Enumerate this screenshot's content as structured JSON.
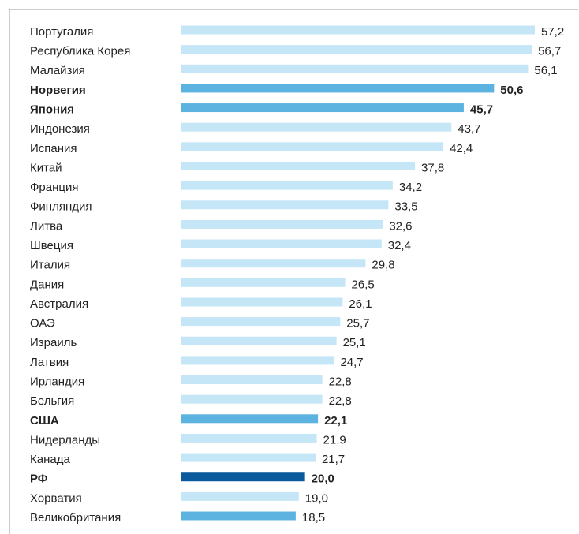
{
  "chart_data": {
    "type": "barh",
    "categories": [
      "Португалия",
      "Республика Корея",
      "Малайзия",
      "Норвегия",
      "Япония",
      "Индонезия",
      "Испания",
      "Китай",
      "Франция",
      "Финляндия",
      "Литва",
      "Швеция",
      "Италия",
      "Дания",
      "Австралия",
      "ОАЭ",
      "Израиль",
      "Латвия",
      "Ирландия",
      "Бельгия",
      "США",
      "Нидерланды",
      "Канада",
      "РФ",
      "Хорватия",
      "Великобритания"
    ],
    "values": [
      57.2,
      56.7,
      56.1,
      50.6,
      45.7,
      43.7,
      42.4,
      37.8,
      34.2,
      33.5,
      32.6,
      32.4,
      29.8,
      26.5,
      26.1,
      25.7,
      25.1,
      24.7,
      22.8,
      22.8,
      22.1,
      21.9,
      21.7,
      20.0,
      19.0,
      18.5
    ],
    "value_labels": [
      "57,2",
      "56,7",
      "56,1",
      "50,6",
      "45,7",
      "43,7",
      "42,4",
      "37,8",
      "34,2",
      "33,5",
      "32,6",
      "32,4",
      "29,8",
      "26,5",
      "26,1",
      "25,7",
      "25,1",
      "24,7",
      "22,8",
      "22,8",
      "22,1",
      "21,9",
      "21,7",
      "20,0",
      "19,0",
      "18,5"
    ],
    "colors": [
      "#c5e6f6",
      "#c5e6f6",
      "#c5e6f6",
      "#5db3e0",
      "#5db3e0",
      "#c5e6f6",
      "#c5e6f6",
      "#c5e6f6",
      "#c5e6f6",
      "#c5e6f6",
      "#c5e6f6",
      "#c5e6f6",
      "#c5e6f6",
      "#c5e6f6",
      "#c5e6f6",
      "#c5e6f6",
      "#c5e6f6",
      "#c5e6f6",
      "#c5e6f6",
      "#c5e6f6",
      "#5db3e0",
      "#c5e6f6",
      "#c5e6f6",
      "#0b5a9c",
      "#c5e6f6",
      "#5db3e0"
    ],
    "label_weights": [
      "normal",
      "normal",
      "normal",
      "bold",
      "bold",
      "normal",
      "normal",
      "normal",
      "normal",
      "normal",
      "normal",
      "normal",
      "normal",
      "normal",
      "normal",
      "normal",
      "normal",
      "normal",
      "normal",
      "normal",
      "bold",
      "normal",
      "normal",
      "bold",
      "normal",
      "normal"
    ],
    "label_colors": [
      "#222",
      "#222",
      "#222",
      "#222",
      "#222",
      "#222",
      "#222",
      "#222",
      "#222",
      "#222",
      "#222",
      "#222",
      "#222",
      "#222",
      "#222",
      "#222",
      "#222",
      "#222",
      "#222",
      "#222",
      "#222",
      "#222",
      "#222",
      "#1a5fa8",
      "#222",
      "#222"
    ]
  }
}
